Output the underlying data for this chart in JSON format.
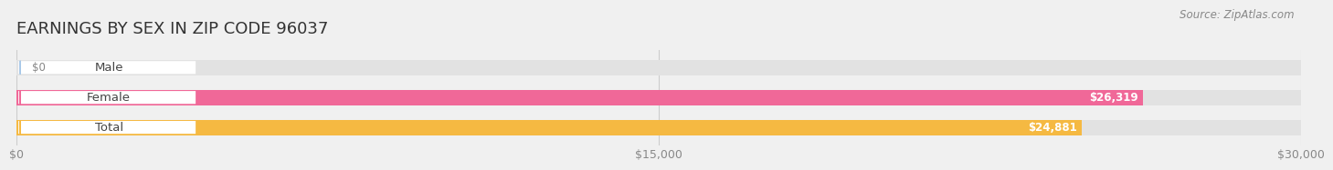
{
  "title": "EARNINGS BY SEX IN ZIP CODE 96037",
  "source": "Source: ZipAtlas.com",
  "categories": [
    "Male",
    "Female",
    "Total"
  ],
  "values": [
    0,
    26319,
    24881
  ],
  "bar_colors": [
    "#a8c8e8",
    "#f06898",
    "#f5b942"
  ],
  "background_color": "#f0f0f0",
  "bar_bg_color": "#e2e2e2",
  "xlim": [
    0,
    30000
  ],
  "xticks": [
    0,
    15000,
    30000
  ],
  "xtick_labels": [
    "$0",
    "$15,000",
    "$30,000"
  ],
  "value_labels": [
    "$0",
    "$26,319",
    "$24,881"
  ],
  "title_fontsize": 13,
  "source_fontsize": 8.5,
  "label_fontsize": 9.5,
  "value_fontsize": 8.5,
  "bar_height": 0.52,
  "fig_width": 14.06,
  "fig_height": 1.95
}
